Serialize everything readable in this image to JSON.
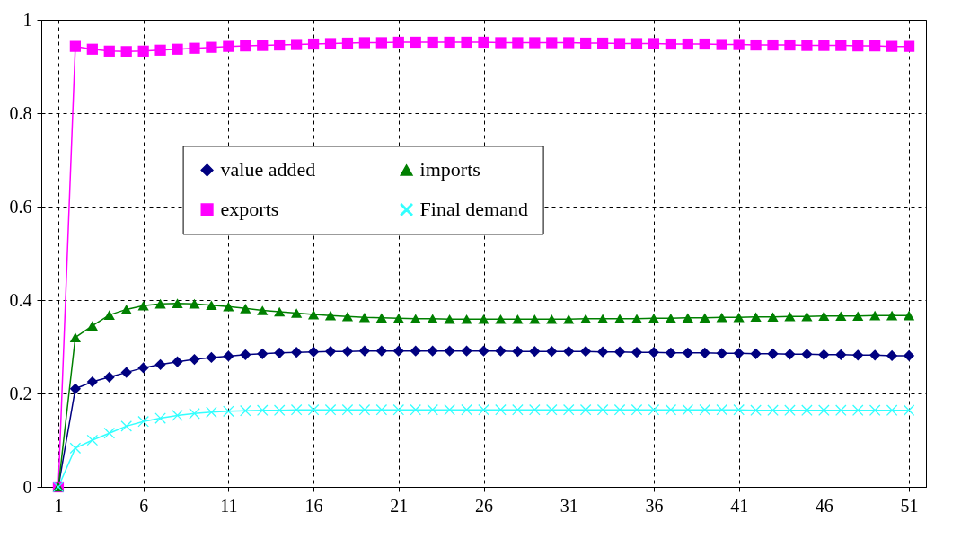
{
  "chart_data": {
    "type": "line",
    "x": [
      1,
      2,
      3,
      4,
      5,
      6,
      7,
      8,
      9,
      10,
      11,
      12,
      13,
      14,
      15,
      16,
      17,
      18,
      19,
      20,
      21,
      22,
      23,
      24,
      25,
      26,
      27,
      28,
      29,
      30,
      31,
      32,
      33,
      34,
      35,
      36,
      37,
      38,
      39,
      40,
      41,
      42,
      43,
      44,
      45,
      46,
      47,
      48,
      49,
      50,
      51
    ],
    "series": [
      {
        "name": "value added",
        "color": "#000080",
        "marker": "diamond",
        "values": [
          0,
          0.21,
          0.225,
          0.235,
          0.245,
          0.255,
          0.262,
          0.268,
          0.273,
          0.277,
          0.28,
          0.283,
          0.285,
          0.287,
          0.288,
          0.289,
          0.29,
          0.29,
          0.291,
          0.291,
          0.291,
          0.291,
          0.291,
          0.291,
          0.291,
          0.291,
          0.291,
          0.29,
          0.29,
          0.29,
          0.29,
          0.29,
          0.289,
          0.289,
          0.288,
          0.288,
          0.287,
          0.287,
          0.287,
          0.286,
          0.286,
          0.285,
          0.285,
          0.284,
          0.284,
          0.283,
          0.283,
          0.282,
          0.282,
          0.281,
          0.281
        ]
      },
      {
        "name": "exports",
        "color": "#ff00ff",
        "marker": "square",
        "values": [
          0,
          0.943,
          0.937,
          0.933,
          0.932,
          0.933,
          0.935,
          0.937,
          0.939,
          0.941,
          0.943,
          0.944,
          0.945,
          0.946,
          0.947,
          0.948,
          0.949,
          0.95,
          0.951,
          0.951,
          0.952,
          0.952,
          0.952,
          0.952,
          0.952,
          0.952,
          0.951,
          0.951,
          0.951,
          0.951,
          0.951,
          0.95,
          0.95,
          0.949,
          0.949,
          0.949,
          0.948,
          0.948,
          0.948,
          0.947,
          0.947,
          0.946,
          0.946,
          0.946,
          0.945,
          0.945,
          0.945,
          0.944,
          0.944,
          0.943,
          0.943
        ]
      },
      {
        "name": "imports",
        "color": "#008000",
        "marker": "triangle",
        "values": [
          0,
          0.32,
          0.345,
          0.368,
          0.38,
          0.388,
          0.392,
          0.393,
          0.392,
          0.389,
          0.386,
          0.382,
          0.378,
          0.375,
          0.372,
          0.369,
          0.367,
          0.365,
          0.363,
          0.362,
          0.361,
          0.36,
          0.36,
          0.359,
          0.359,
          0.359,
          0.359,
          0.359,
          0.359,
          0.359,
          0.359,
          0.36,
          0.36,
          0.36,
          0.36,
          0.361,
          0.361,
          0.362,
          0.362,
          0.363,
          0.363,
          0.364,
          0.364,
          0.365,
          0.365,
          0.366,
          0.366,
          0.366,
          0.367,
          0.367,
          0.367
        ]
      },
      {
        "name": "Final demand",
        "color": "#33ffff",
        "marker": "cross",
        "values": [
          0,
          0.083,
          0.1,
          0.115,
          0.13,
          0.14,
          0.147,
          0.153,
          0.157,
          0.16,
          0.162,
          0.163,
          0.164,
          0.164,
          0.165,
          0.165,
          0.165,
          0.165,
          0.165,
          0.165,
          0.165,
          0.165,
          0.165,
          0.165,
          0.165,
          0.165,
          0.165,
          0.165,
          0.165,
          0.165,
          0.165,
          0.165,
          0.165,
          0.165,
          0.165,
          0.165,
          0.165,
          0.165,
          0.165,
          0.165,
          0.165,
          0.164,
          0.164,
          0.164,
          0.164,
          0.164,
          0.164,
          0.164,
          0.164,
          0.164,
          0.164
        ]
      }
    ],
    "xlim": [
      0,
      52
    ],
    "xticks": [
      1,
      6,
      11,
      16,
      21,
      26,
      31,
      36,
      41,
      46,
      51
    ],
    "ylim": [
      0,
      1
    ],
    "yticks": [
      0,
      0.2,
      0.4,
      0.6,
      0.8,
      1
    ],
    "grid": true,
    "legend": "top",
    "line_style": "solid"
  }
}
